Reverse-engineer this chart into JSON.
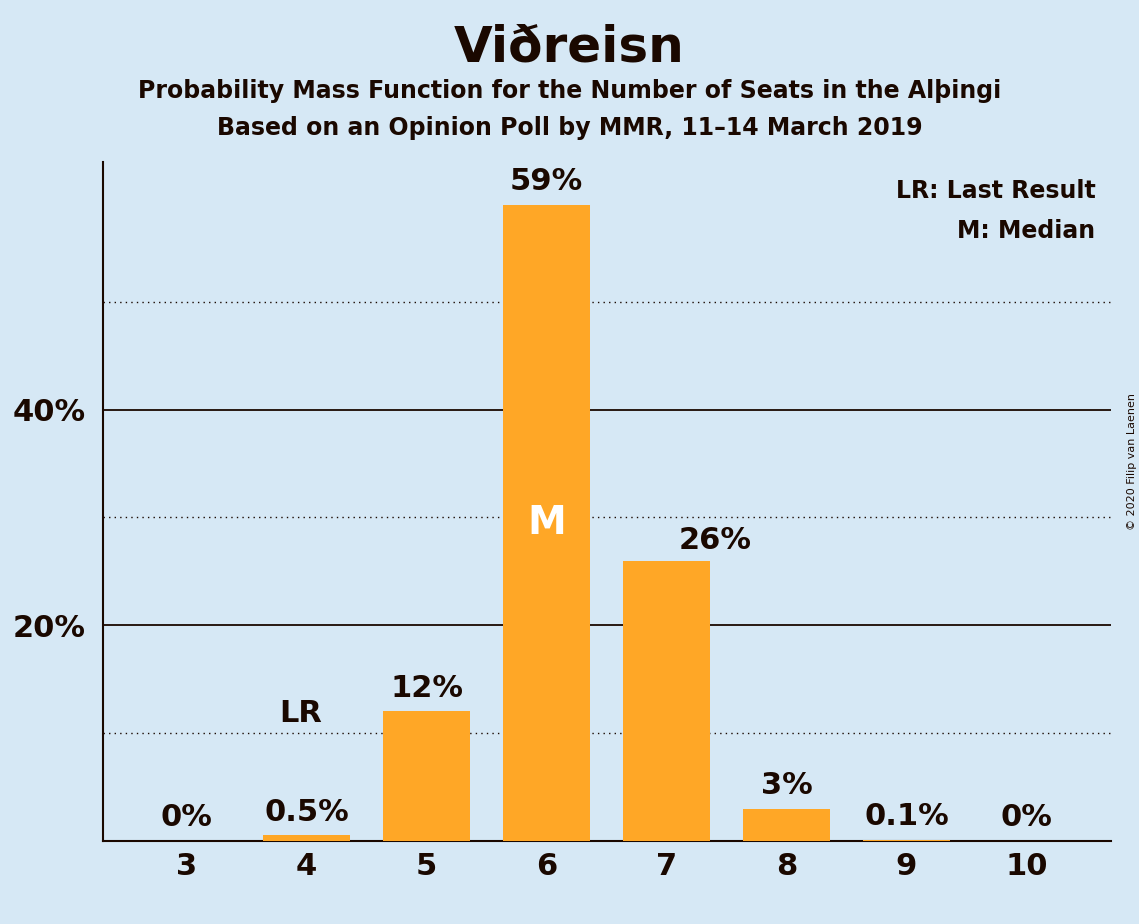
{
  "title": "Viðreisn",
  "subtitle1_text": "Probability Mass Function for the Number of Seats in the Alþingi",
  "subtitle2": "Based on an Opinion Poll by MMR, 11–14 March 2019",
  "seats": [
    3,
    4,
    5,
    6,
    7,
    8,
    9,
    10
  ],
  "probabilities": [
    0.0,
    0.5,
    12.0,
    59.0,
    26.0,
    3.0,
    0.1,
    0.0
  ],
  "bar_color": "#FFA726",
  "background_color": "#d6e8f5",
  "text_color": "#1a0800",
  "label_texts": [
    "0%",
    "0.5%",
    "12%",
    "59%",
    "26%",
    "3%",
    "0.1%",
    "0%"
  ],
  "yticks_solid": [
    20,
    40
  ],
  "yticks_dotted": [
    10,
    30,
    50
  ],
  "ylim": [
    0,
    63
  ],
  "xlim": [
    2.3,
    10.7
  ],
  "lr_seat": 4,
  "median_seat": 6,
  "copyright_text": "© 2020 Filip van Laenen",
  "legend_lr": "LR: Last Result",
  "legend_m": "M: Median",
  "title_fontsize": 36,
  "subtitle_fontsize": 17,
  "tick_fontsize": 22,
  "label_fontsize": 22,
  "legend_fontsize": 17,
  "m_fontsize": 28
}
